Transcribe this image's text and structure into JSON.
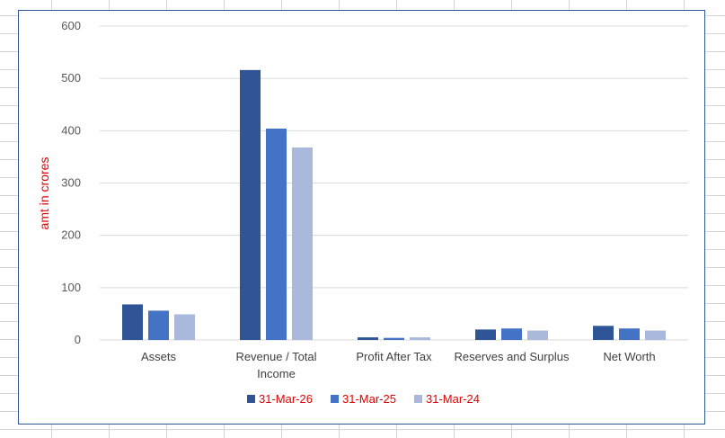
{
  "chart_data": {
    "type": "bar",
    "title": "",
    "xlabel": "",
    "ylabel": "amt in crores",
    "ylim": [
      0,
      600
    ],
    "yticks": [
      0,
      100,
      200,
      300,
      400,
      500,
      600
    ],
    "grid": true,
    "legend_position": "bottom",
    "categories": [
      [
        "Assets"
      ],
      [
        "Revenue / Total",
        "Income"
      ],
      [
        "Profit After Tax"
      ],
      [
        "Reserves and Surplus"
      ],
      [
        "Net Worth"
      ]
    ],
    "series": [
      {
        "name": "31-Mar-26",
        "color": "#2f5597",
        "values": [
          68,
          516,
          5,
          20,
          27
        ]
      },
      {
        "name": "31-Mar-25",
        "color": "#4472c4",
        "values": [
          56,
          404,
          4,
          22,
          22
        ]
      },
      {
        "name": "31-Mar-24",
        "color": "#a9b8db",
        "values": [
          49,
          368,
          5,
          18,
          18
        ]
      }
    ],
    "colors": {
      "gridline": "#d9d9d9",
      "axis_label": "#e00000",
      "legend_text": "#e00000",
      "tick_text": "#595959"
    }
  }
}
